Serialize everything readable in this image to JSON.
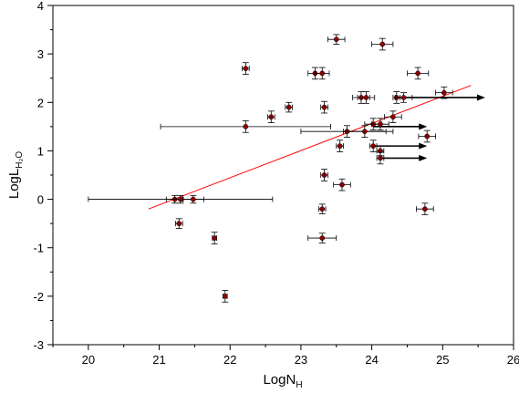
{
  "chart_data": {
    "type": "scatter",
    "title": "",
    "xlabel": "LogN",
    "xlabel_sub": "H",
    "ylabel": "LogL",
    "ylabel_sub": "H₂O",
    "xlim": [
      19.5,
      26
    ],
    "ylim": [
      -3,
      4
    ],
    "xticks": [
      20,
      21,
      22,
      23,
      24,
      25,
      26
    ],
    "yticks": [
      -3,
      -2,
      -1,
      0,
      1,
      2,
      3,
      4
    ],
    "grid": false,
    "marker_color": "#8b0000",
    "errorbar_color": "#000000",
    "fit_color": "#ff0000",
    "arrow_color": "#000000",
    "points": [
      {
        "x": 21.22,
        "y": 0.0,
        "xerr": 0.12,
        "yerr": 0.08
      },
      {
        "x": 21.3,
        "y": 0.0,
        "xerr": 1.3,
        "yerr": 0.08
      },
      {
        "x": 21.48,
        "y": 0.0,
        "xerr": 0.15,
        "yerr": 0.08
      },
      {
        "x": 21.28,
        "y": -0.5,
        "xerr": 0.05,
        "yerr": 0.1
      },
      {
        "x": 21.78,
        "y": -0.8,
        "xerr": 0.03,
        "yerr": 0.12
      },
      {
        "x": 21.93,
        "y": -2.0,
        "xerr": 0.03,
        "yerr": 0.12
      },
      {
        "x": 22.22,
        "y": 1.5,
        "xerr": 1.2,
        "yerr": 0.12
      },
      {
        "x": 22.22,
        "y": 2.7,
        "xerr": 0.05,
        "yerr": 0.12
      },
      {
        "x": 22.58,
        "y": 1.7,
        "xerr": 0.05,
        "yerr": 0.12
      },
      {
        "x": 22.83,
        "y": 1.9,
        "xerr": 0.05,
        "yerr": 0.1
      },
      {
        "x": 23.2,
        "y": 2.6,
        "xerr": 0.1,
        "yerr": 0.12
      },
      {
        "x": 23.3,
        "y": 2.6,
        "xerr": 0.1,
        "yerr": 0.12
      },
      {
        "x": 23.33,
        "y": 1.9,
        "xerr": 0.05,
        "yerr": 0.12
      },
      {
        "x": 23.33,
        "y": 0.5,
        "xerr": 0.05,
        "yerr": 0.12
      },
      {
        "x": 23.3,
        "y": -0.2,
        "xerr": 0.05,
        "yerr": 0.1
      },
      {
        "x": 23.3,
        "y": -0.8,
        "xerr": 0.2,
        "yerr": 0.1
      },
      {
        "x": 23.5,
        "y": 3.3,
        "xerr": 0.12,
        "yerr": 0.1
      },
      {
        "x": 23.55,
        "y": 1.1,
        "xerr": 0.05,
        "yerr": 0.12
      },
      {
        "x": 23.58,
        "y": 0.3,
        "xerr": 0.12,
        "yerr": 0.12
      },
      {
        "x": 23.65,
        "y": 1.4,
        "xerr": 0.65,
        "yerr": 0.12
      },
      {
        "x": 23.85,
        "y": 2.1,
        "xerr": 0.12,
        "yerr": 0.12
      },
      {
        "x": 23.92,
        "y": 2.1,
        "xerr": 0.12,
        "yerr": 0.12
      },
      {
        "x": 23.9,
        "y": 1.4,
        "xerr": 0.3,
        "yerr": 0.12
      },
      {
        "x": 24.02,
        "y": 1.55,
        "xerr": 0.12,
        "yerr": 0.12
      },
      {
        "x": 24.02,
        "y": 1.1,
        "xerr": 0.05,
        "yerr": 0.12
      },
      {
        "x": 24.12,
        "y": 1.0,
        "xerr": 0.05,
        "yerr": 0.1
      },
      {
        "x": 24.12,
        "y": 0.85,
        "xerr": 0.05,
        "yerr": 0.12
      },
      {
        "x": 24.12,
        "y": 1.55,
        "xerr": 0.12,
        "yerr": 0.12
      },
      {
        "x": 24.15,
        "y": 3.2,
        "xerr": 0.15,
        "yerr": 0.12
      },
      {
        "x": 24.3,
        "y": 1.7,
        "xerr": 0.12,
        "yerr": 0.12
      },
      {
        "x": 24.35,
        "y": 2.1,
        "xerr": 0.05,
        "yerr": 0.12
      },
      {
        "x": 24.45,
        "y": 2.1,
        "xerr": 0.12,
        "yerr": 0.1
      },
      {
        "x": 24.65,
        "y": 2.6,
        "xerr": 0.15,
        "yerr": 0.12
      },
      {
        "x": 24.75,
        "y": -0.2,
        "xerr": 0.12,
        "yerr": 0.12
      },
      {
        "x": 24.78,
        "y": 1.3,
        "xerr": 0.12,
        "yerr": 0.12
      },
      {
        "x": 25.02,
        "y": 2.2,
        "xerr": 0.12,
        "yerr": 0.12
      }
    ],
    "lower_limit_arrows": [
      {
        "x": 24.35,
        "y": 2.1,
        "to_x": 25.6
      },
      {
        "x": 24.02,
        "y": 1.5,
        "to_x": 24.78
      },
      {
        "x": 24.02,
        "y": 1.1,
        "to_x": 24.78
      },
      {
        "x": 24.12,
        "y": 0.85,
        "to_x": 24.78
      }
    ],
    "fit_line": {
      "x1": 20.85,
      "y1": -0.2,
      "x2": 25.4,
      "y2": 2.35
    }
  }
}
